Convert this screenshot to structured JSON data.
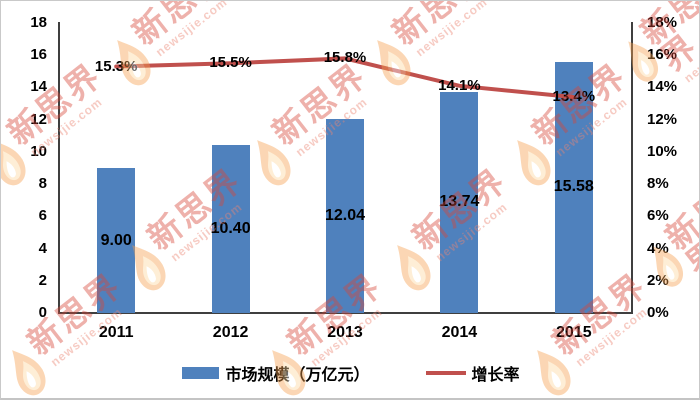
{
  "watermark": {
    "brand": "新思界",
    "domain": "newsijie.com"
  },
  "chart_data": {
    "type": "bar",
    "subtype": "bar+line combo, dual y-axes",
    "categories": [
      "2011",
      "2012",
      "2013",
      "2014",
      "2015"
    ],
    "series": [
      {
        "name": "市场规模（万亿元）",
        "type": "bar",
        "color": "#4f81bd",
        "values": [
          9.0,
          10.4,
          12.04,
          13.74,
          15.58
        ],
        "labels": [
          "9.00",
          "10.40",
          "12.04",
          "13.74",
          "15.58"
        ],
        "axis": "left"
      },
      {
        "name": "增长率",
        "type": "line",
        "color": "#c0504d",
        "values": [
          15.3,
          15.5,
          15.8,
          14.1,
          13.4
        ],
        "labels": [
          "15.3%",
          "15.5%",
          "15.8%",
          "14.1%",
          "13.4%"
        ],
        "axis": "right"
      }
    ],
    "left_axis": {
      "min": 0,
      "max": 18,
      "step": 2,
      "ticks": [
        "0",
        "2",
        "4",
        "6",
        "8",
        "10",
        "12",
        "14",
        "16",
        "18"
      ]
    },
    "right_axis": {
      "min": 0,
      "max": 18,
      "step": 2,
      "ticks": [
        "0%",
        "2%",
        "4%",
        "6%",
        "8%",
        "10%",
        "12%",
        "14%",
        "16%",
        "18%"
      ]
    },
    "grid": "off",
    "legend_position": "bottom"
  }
}
